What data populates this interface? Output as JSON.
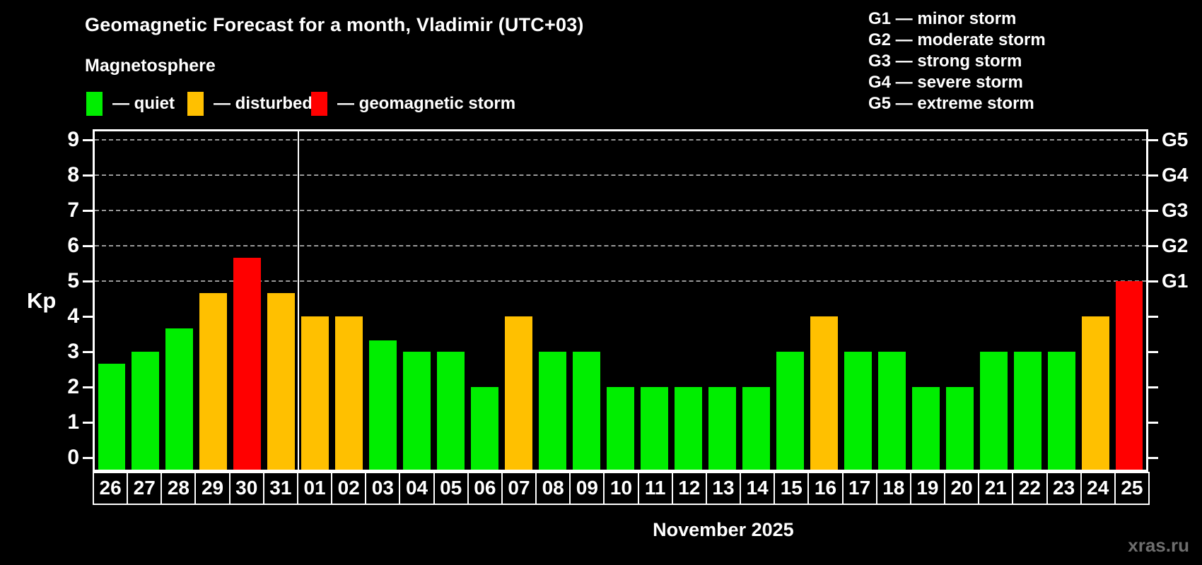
{
  "header": {
    "title": "Geomagnetic Forecast for a month, Vladimir (UTC+03)",
    "subtitle": "Magnetosphere",
    "legend": [
      {
        "key": "quiet",
        "label": "— quiet",
        "color": "#00ee00"
      },
      {
        "key": "disturbed",
        "label": "— disturbed",
        "color": "#ffc000"
      },
      {
        "key": "storm",
        "label": "— geomagnetic storm",
        "color": "#ff0000"
      }
    ],
    "g_scale": [
      "G1 — minor storm",
      "G2 — moderate storm",
      "G3 — strong storm",
      "G4 — severe storm",
      "G5 — extreme storm"
    ]
  },
  "chart_data": {
    "type": "bar",
    "title": "Geomagnetic Forecast for a month, Vladimir (UTC+03)",
    "ylabel": "Kp",
    "xlabel": "November 2025",
    "ylim": [
      0,
      9
    ],
    "yticks": [
      0,
      1,
      2,
      3,
      4,
      5,
      6,
      7,
      8,
      9
    ],
    "grid": "dashed horizontal lines at Kp 5-9 only",
    "gridlines_at_kp": [
      5,
      6,
      7,
      8,
      9
    ],
    "right_axis": [
      {
        "label": "G1",
        "kp": 5
      },
      {
        "label": "G2",
        "kp": 6
      },
      {
        "label": "G3",
        "kp": 7
      },
      {
        "label": "G4",
        "kp": 8
      },
      {
        "label": "G5",
        "kp": 9
      }
    ],
    "month_separator_after_category": "31",
    "categories": [
      "26",
      "27",
      "28",
      "29",
      "30",
      "31",
      "01",
      "02",
      "03",
      "04",
      "05",
      "06",
      "07",
      "08",
      "09",
      "10",
      "11",
      "12",
      "13",
      "14",
      "15",
      "16",
      "17",
      "18",
      "19",
      "20",
      "21",
      "22",
      "23",
      "24",
      "25"
    ],
    "values": [
      2.67,
      3,
      3.67,
      4.67,
      5.67,
      4.67,
      4,
      4,
      3.33,
      3,
      3,
      2,
      4,
      3,
      3,
      2,
      2,
      2,
      2,
      2,
      3,
      4,
      3,
      3,
      2,
      2,
      3,
      3,
      3,
      4,
      5
    ],
    "bar_states": [
      "quiet",
      "quiet",
      "quiet",
      "disturbed",
      "storm",
      "disturbed",
      "disturbed",
      "disturbed",
      "quiet",
      "quiet",
      "quiet",
      "quiet",
      "disturbed",
      "quiet",
      "quiet",
      "quiet",
      "quiet",
      "quiet",
      "quiet",
      "quiet",
      "quiet",
      "disturbed",
      "quiet",
      "quiet",
      "quiet",
      "quiet",
      "quiet",
      "quiet",
      "quiet",
      "disturbed",
      "storm"
    ],
    "legend_position": "top-left"
  },
  "colors": {
    "background": "#000000",
    "axis": "#ffffff",
    "grid": "#9a9a9a",
    "quiet": "#00ee00",
    "disturbed": "#ffc000",
    "storm": "#ff0000",
    "watermark": "#6e6e6e"
  },
  "watermark": "xras.ru"
}
